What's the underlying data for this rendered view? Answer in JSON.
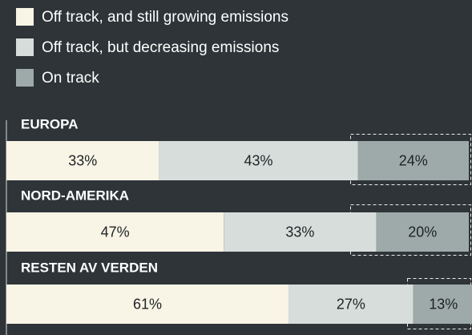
{
  "chart_data": {
    "type": "bar",
    "orientation": "horizontal",
    "stacked": true,
    "categories": [
      "EUROPA",
      "NORD-AMERIKA",
      "RESTEN AV VERDEN"
    ],
    "series": [
      {
        "name": "Off track, and still growing emissions",
        "color": "#f8f4e6",
        "values": [
          33,
          47,
          61
        ],
        "value_labels": [
          "33%",
          "47%",
          "61%"
        ]
      },
      {
        "name": "Off track, but decreasing emissions",
        "color": "#d6dddb",
        "values": [
          43,
          33,
          27
        ],
        "value_labels": [
          "43%",
          "33%",
          "27%"
        ]
      },
      {
        "name": "On track",
        "color": "#9eaaaa",
        "values": [
          24,
          20,
          13
        ],
        "value_labels": [
          "24%",
          "20%",
          "13%"
        ]
      }
    ],
    "xlim": [
      0,
      100
    ]
  }
}
